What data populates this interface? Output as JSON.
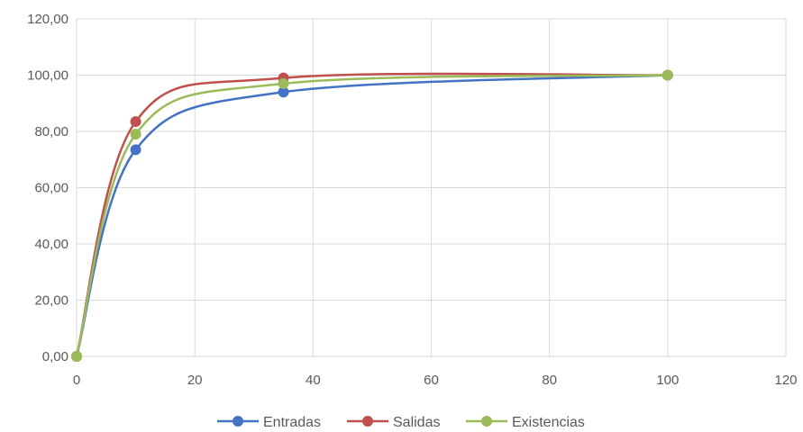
{
  "chart_data": {
    "type": "scatter",
    "title": "",
    "xlabel": "",
    "ylabel": "",
    "xlim": [
      0,
      120
    ],
    "ylim": [
      0,
      120
    ],
    "x_ticks": [
      "0",
      "20",
      "40",
      "60",
      "80",
      "100",
      "120"
    ],
    "y_ticks": [
      "0,00",
      "20,00",
      "40,00",
      "60,00",
      "80,00",
      "100,00",
      "120,00"
    ],
    "grid": true,
    "smooth_lines": true,
    "legend_position": "bottom",
    "series": [
      {
        "name": "Entradas",
        "color": "#4472C4",
        "points": [
          [
            0,
            0
          ],
          [
            10,
            73.5
          ],
          [
            35,
            94
          ],
          [
            100,
            100
          ]
        ]
      },
      {
        "name": "Salidas",
        "color": "#C0504D",
        "points": [
          [
            0,
            0
          ],
          [
            10,
            83.5
          ],
          [
            35,
            99
          ],
          [
            100,
            100
          ]
        ]
      },
      {
        "name": "Existencias",
        "color": "#9BBB59",
        "points": [
          [
            0,
            0
          ],
          [
            10,
            79
          ],
          [
            35,
            97
          ],
          [
            100,
            100
          ]
        ]
      }
    ]
  }
}
